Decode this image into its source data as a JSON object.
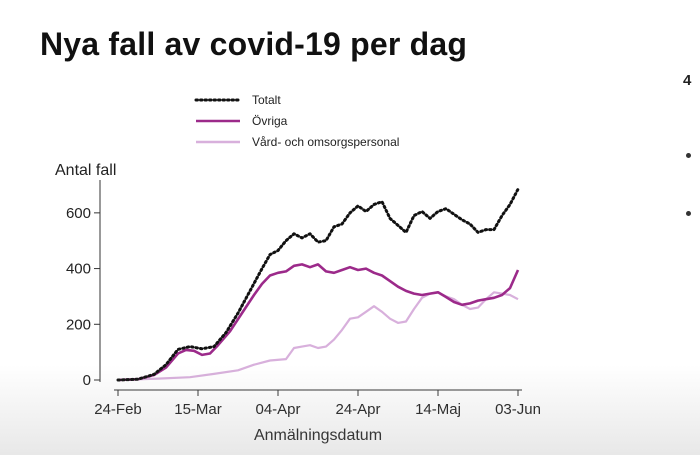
{
  "slide": {
    "title": "Nya fall av covid-19 per dag",
    "side_text": "4"
  },
  "chart_data": {
    "type": "line",
    "title": "Nya fall av covid-19 per dag",
    "ylabel": "Antal fall",
    "xlabel": "Anmälningsdatum",
    "ylim": [
      0,
      700
    ],
    "yticks": [
      0,
      200,
      400,
      600
    ],
    "xlim_days": [
      0,
      100
    ],
    "xticks": [
      {
        "day": 0,
        "label": "24-Feb"
      },
      {
        "day": 20,
        "label": "15-Mar"
      },
      {
        "day": 40,
        "label": "04-Apr"
      },
      {
        "day": 60,
        "label": "24-Apr"
      },
      {
        "day": 80,
        "label": "14-Maj"
      },
      {
        "day": 100,
        "label": "03-Jun"
      }
    ],
    "legend_position": "top-left",
    "grid": false,
    "series": [
      {
        "name": "Totalt",
        "color": "#111111",
        "style": "dotted",
        "points": [
          [
            0,
            0
          ],
          [
            5,
            3
          ],
          [
            9,
            20
          ],
          [
            12,
            55
          ],
          [
            15,
            110
          ],
          [
            18,
            120
          ],
          [
            21,
            112
          ],
          [
            24,
            120
          ],
          [
            27,
            170
          ],
          [
            30,
            240
          ],
          [
            33,
            320
          ],
          [
            36,
            400
          ],
          [
            38,
            450
          ],
          [
            40,
            465
          ],
          [
            42,
            500
          ],
          [
            44,
            525
          ],
          [
            46,
            510
          ],
          [
            48,
            525
          ],
          [
            50,
            495
          ],
          [
            52,
            500
          ],
          [
            54,
            550
          ],
          [
            56,
            560
          ],
          [
            58,
            600
          ],
          [
            60,
            625
          ],
          [
            62,
            605
          ],
          [
            64,
            630
          ],
          [
            66,
            640
          ],
          [
            68,
            580
          ],
          [
            70,
            555
          ],
          [
            72,
            530
          ],
          [
            74,
            590
          ],
          [
            76,
            605
          ],
          [
            78,
            580
          ],
          [
            80,
            605
          ],
          [
            82,
            615
          ],
          [
            84,
            595
          ],
          [
            86,
            575
          ],
          [
            88,
            560
          ],
          [
            90,
            530
          ],
          [
            92,
            540
          ],
          [
            94,
            540
          ],
          [
            96,
            590
          ],
          [
            98,
            630
          ],
          [
            100,
            685
          ]
        ]
      },
      {
        "name": "Övriga",
        "color": "#9c2a8a",
        "style": "solid",
        "points": [
          [
            0,
            0
          ],
          [
            5,
            3
          ],
          [
            9,
            18
          ],
          [
            12,
            45
          ],
          [
            15,
            95
          ],
          [
            17,
            108
          ],
          [
            19,
            105
          ],
          [
            21,
            90
          ],
          [
            23,
            95
          ],
          [
            25,
            125
          ],
          [
            28,
            175
          ],
          [
            31,
            240
          ],
          [
            34,
            305
          ],
          [
            36,
            345
          ],
          [
            38,
            375
          ],
          [
            40,
            385
          ],
          [
            42,
            390
          ],
          [
            44,
            410
          ],
          [
            46,
            415
          ],
          [
            48,
            405
          ],
          [
            50,
            415
          ],
          [
            52,
            390
          ],
          [
            54,
            385
          ],
          [
            56,
            395
          ],
          [
            58,
            405
          ],
          [
            60,
            395
          ],
          [
            62,
            400
          ],
          [
            64,
            385
          ],
          [
            66,
            375
          ],
          [
            68,
            355
          ],
          [
            70,
            335
          ],
          [
            72,
            320
          ],
          [
            74,
            310
          ],
          [
            76,
            305
          ],
          [
            78,
            310
          ],
          [
            80,
            315
          ],
          [
            82,
            298
          ],
          [
            84,
            280
          ],
          [
            86,
            270
          ],
          [
            88,
            275
          ],
          [
            90,
            285
          ],
          [
            92,
            290
          ],
          [
            94,
            295
          ],
          [
            96,
            305
          ],
          [
            98,
            330
          ],
          [
            100,
            395
          ]
        ]
      },
      {
        "name": "Vård- och omsorgspersonal",
        "color": "#d8b0dc",
        "style": "solid",
        "points": [
          [
            0,
            0
          ],
          [
            10,
            5
          ],
          [
            18,
            10
          ],
          [
            24,
            22
          ],
          [
            30,
            35
          ],
          [
            34,
            55
          ],
          [
            38,
            70
          ],
          [
            42,
            75
          ],
          [
            44,
            115
          ],
          [
            46,
            120
          ],
          [
            48,
            125
          ],
          [
            50,
            115
          ],
          [
            52,
            120
          ],
          [
            54,
            145
          ],
          [
            56,
            180
          ],
          [
            58,
            220
          ],
          [
            60,
            225
          ],
          [
            62,
            245
          ],
          [
            64,
            265
          ],
          [
            66,
            245
          ],
          [
            68,
            220
          ],
          [
            70,
            205
          ],
          [
            72,
            210
          ],
          [
            74,
            255
          ],
          [
            76,
            295
          ],
          [
            78,
            310
          ],
          [
            80,
            315
          ],
          [
            82,
            300
          ],
          [
            84,
            290
          ],
          [
            86,
            270
          ],
          [
            88,
            255
          ],
          [
            90,
            260
          ],
          [
            92,
            290
          ],
          [
            94,
            315
          ],
          [
            96,
            310
          ],
          [
            98,
            305
          ],
          [
            100,
            290
          ]
        ]
      }
    ]
  }
}
